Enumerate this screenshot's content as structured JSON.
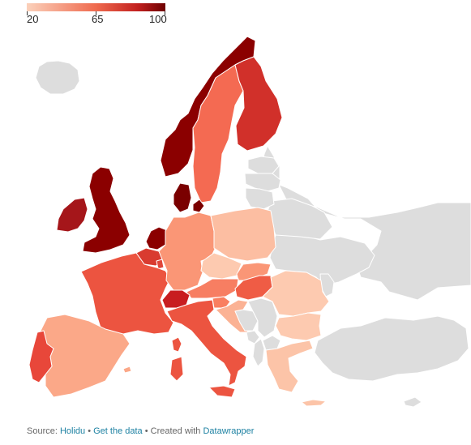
{
  "legend": {
    "min_label": "20",
    "mid_label": "65",
    "max_label": "100",
    "gradient_colors": [
      "#fbd1bb",
      "#ef6a4e",
      "#c2201f",
      "#6d0000"
    ]
  },
  "map": {
    "no_data_color": "#dddddd",
    "countries": [
      {
        "name": "Iceland",
        "fill": "#dddddd"
      },
      {
        "name": "Norway",
        "fill": "#8b0000"
      },
      {
        "name": "Sweden",
        "fill": "#f46a52"
      },
      {
        "name": "Finland",
        "fill": "#d1302a"
      },
      {
        "name": "Denmark",
        "fill": "#7a0000"
      },
      {
        "name": "United Kingdom",
        "fill": "#8b0000"
      },
      {
        "name": "Ireland",
        "fill": "#a5161a"
      },
      {
        "name": "Netherlands",
        "fill": "#8b0000"
      },
      {
        "name": "Belgium",
        "fill": "#d93b30"
      },
      {
        "name": "Luxembourg",
        "fill": "#e0463a"
      },
      {
        "name": "France",
        "fill": "#ec5440"
      },
      {
        "name": "Germany",
        "fill": "#fa9676"
      },
      {
        "name": "Poland",
        "fill": "#fcbea2"
      },
      {
        "name": "Czechia",
        "fill": "#fdcab0"
      },
      {
        "name": "Slovakia",
        "fill": "#fa9676"
      },
      {
        "name": "Austria",
        "fill": "#f77e62"
      },
      {
        "name": "Hungary",
        "fill": "#ef5c45"
      },
      {
        "name": "Switzerland",
        "fill": "#c81d20"
      },
      {
        "name": "Slovenia",
        "fill": "#f97f60"
      },
      {
        "name": "Croatia",
        "fill": "#fbb294"
      },
      {
        "name": "Romania",
        "fill": "#fdcab0"
      },
      {
        "name": "Bulgaria",
        "fill": "#fdcab0"
      },
      {
        "name": "Greece",
        "fill": "#fcc4a8"
      },
      {
        "name": "Italy",
        "fill": "#ec5440"
      },
      {
        "name": "Spain",
        "fill": "#fba888"
      },
      {
        "name": "Portugal",
        "fill": "#e8473a"
      },
      {
        "name": "Estonia",
        "fill": "#dddddd"
      },
      {
        "name": "Latvia",
        "fill": "#dddddd"
      },
      {
        "name": "Lithuania",
        "fill": "#dddddd"
      },
      {
        "name": "Belarus",
        "fill": "#dddddd"
      },
      {
        "name": "Russia",
        "fill": "#dddddd"
      },
      {
        "name": "Ukraine",
        "fill": "#dddddd"
      },
      {
        "name": "Moldova",
        "fill": "#dddddd"
      },
      {
        "name": "Serbia",
        "fill": "#dddddd"
      },
      {
        "name": "Bosnia and Herzegovina",
        "fill": "#dddddd"
      },
      {
        "name": "Montenegro",
        "fill": "#dddddd"
      },
      {
        "name": "Albania",
        "fill": "#dddddd"
      },
      {
        "name": "North Macedonia",
        "fill": "#dddddd"
      },
      {
        "name": "Turkey",
        "fill": "#dddddd"
      },
      {
        "name": "Cyprus",
        "fill": "#dddddd"
      }
    ]
  },
  "footer": {
    "source_prefix": "Source: ",
    "source_link": "Holidu",
    "sep1": " • ",
    "get_data": "Get the data",
    "sep2": " • Created with ",
    "tool": "Datawrapper"
  }
}
